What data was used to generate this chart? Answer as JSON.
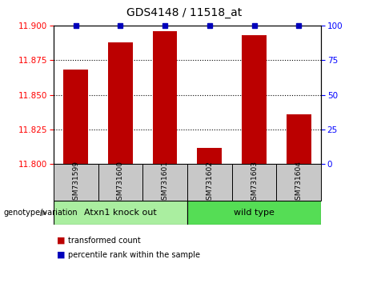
{
  "title": "GDS4148 / 11518_at",
  "samples": [
    "GSM731599",
    "GSM731600",
    "GSM731601",
    "GSM731602",
    "GSM731603",
    "GSM731604"
  ],
  "red_values": [
    11.868,
    11.888,
    11.896,
    11.812,
    11.893,
    11.836
  ],
  "blue_values": [
    100,
    100,
    100,
    100,
    100,
    100
  ],
  "ylim_left": [
    11.8,
    11.9
  ],
  "ylim_right": [
    0,
    100
  ],
  "yticks_left": [
    11.8,
    11.825,
    11.85,
    11.875,
    11.9
  ],
  "yticks_right": [
    0,
    25,
    50,
    75,
    100
  ],
  "gridlines": [
    11.875,
    11.85,
    11.825
  ],
  "group1_label": "Atxn1 knock out",
  "group2_label": "wild type",
  "group1_indices": [
    0,
    1,
    2
  ],
  "group2_indices": [
    3,
    4,
    5
  ],
  "genotype_label": "genotype/variation",
  "legend_red": "transformed count",
  "legend_blue": "percentile rank within the sample",
  "bar_color": "#bb0000",
  "dot_color": "#0000bb",
  "group1_color": "#aaeea0",
  "group2_color": "#55dd55",
  "bg_color": "#c8c8c8",
  "plot_bg": "#ffffff",
  "bar_width": 0.55
}
